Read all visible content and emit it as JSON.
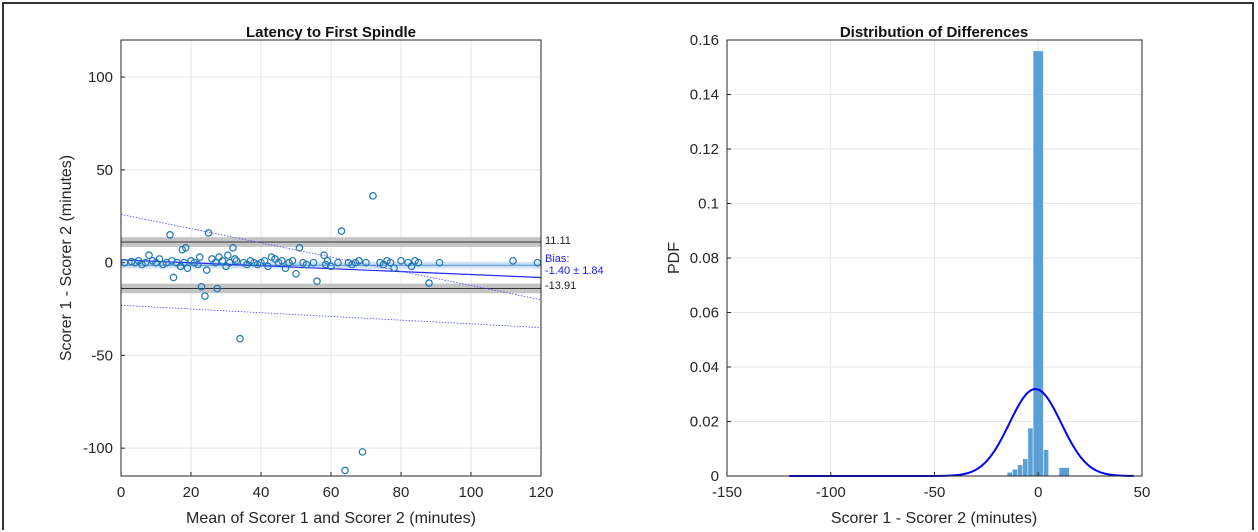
{
  "chart_data": [
    {
      "type": "scatter",
      "title": "Latency to First Spindle",
      "xlabel": "Mean of Scorer 1 and Scorer 2 (minutes)",
      "ylabel": "Scorer 1 - Scorer 2 (minutes)",
      "xlim": [
        0,
        120
      ],
      "ylim": [
        -115,
        120
      ],
      "xticks": [
        "0",
        "20",
        "40",
        "60",
        "80",
        "100",
        "120"
      ],
      "yticks": [
        "100",
        "50",
        "0",
        "-50",
        "-100"
      ],
      "grid": true,
      "point_color": "#1f77b4",
      "limits": {
        "upper_loa": {
          "value": 11.11,
          "label": "11.11"
        },
        "lower_loa": {
          "value": -13.91,
          "label": "-13.91"
        },
        "bias": {
          "value": -1.4,
          "ci": 1.84,
          "label1": "Bias:",
          "label2": "-1.40 ± 1.84"
        }
      },
      "regression": {
        "x": [
          0,
          120
        ],
        "y": [
          1.5,
          -8
        ]
      },
      "regression_upper": {
        "x": [
          0,
          120
        ],
        "y": [
          26,
          -20
        ]
      },
      "regression_lower": {
        "x": [
          0,
          120
        ],
        "y": [
          -23,
          -35
        ]
      },
      "points": [
        [
          1,
          0
        ],
        [
          3,
          0.5
        ],
        [
          4,
          0
        ],
        [
          5,
          1
        ],
        [
          6,
          -1
        ],
        [
          7,
          0
        ],
        [
          8,
          4
        ],
        [
          9,
          1
        ],
        [
          10,
          0
        ],
        [
          11,
          2
        ],
        [
          12,
          -1
        ],
        [
          13,
          0
        ],
        [
          14,
          15
        ],
        [
          14.5,
          1
        ],
        [
          15,
          -8
        ],
        [
          16,
          0
        ],
        [
          17,
          -2
        ],
        [
          17.5,
          7
        ],
        [
          18,
          0
        ],
        [
          18.5,
          8
        ],
        [
          19,
          -3
        ],
        [
          20,
          1
        ],
        [
          21,
          0
        ],
        [
          22,
          -1
        ],
        [
          22.5,
          3
        ],
        [
          23,
          -13
        ],
        [
          24,
          -18
        ],
        [
          24.5,
          -4
        ],
        [
          25,
          16
        ],
        [
          26,
          2
        ],
        [
          27,
          0
        ],
        [
          27.5,
          -14
        ],
        [
          28,
          3
        ],
        [
          29,
          1
        ],
        [
          30,
          -2
        ],
        [
          30.5,
          4
        ],
        [
          31,
          0
        ],
        [
          32,
          8
        ],
        [
          32.5,
          2
        ],
        [
          33,
          1
        ],
        [
          34,
          -41
        ],
        [
          35,
          0
        ],
        [
          36,
          -1
        ],
        [
          37,
          1
        ],
        [
          38,
          0
        ],
        [
          39,
          -1
        ],
        [
          40,
          0
        ],
        [
          41,
          1
        ],
        [
          42,
          -2
        ],
        [
          43,
          3
        ],
        [
          44,
          2
        ],
        [
          45,
          0
        ],
        [
          46,
          1
        ],
        [
          47,
          -3
        ],
        [
          48,
          0
        ],
        [
          49,
          1
        ],
        [
          50,
          -6
        ],
        [
          51,
          8
        ],
        [
          52,
          0
        ],
        [
          53,
          -1
        ],
        [
          55,
          0
        ],
        [
          56,
          -10
        ],
        [
          58,
          4
        ],
        [
          58.5,
          -1
        ],
        [
          59,
          1
        ],
        [
          60,
          -2
        ],
        [
          62,
          0
        ],
        [
          63,
          17
        ],
        [
          64,
          -112
        ],
        [
          65,
          0
        ],
        [
          66,
          -1
        ],
        [
          67,
          0
        ],
        [
          68,
          1
        ],
        [
          69,
          -102
        ],
        [
          70,
          0
        ],
        [
          72,
          36
        ],
        [
          74,
          0
        ],
        [
          75,
          -1
        ],
        [
          76,
          1
        ],
        [
          77,
          0
        ],
        [
          78,
          -3
        ],
        [
          80,
          1
        ],
        [
          82,
          0
        ],
        [
          83,
          -2
        ],
        [
          84,
          1
        ],
        [
          85,
          0
        ],
        [
          88,
          -11
        ],
        [
          91,
          0
        ],
        [
          112,
          1
        ],
        [
          119,
          0
        ]
      ]
    },
    {
      "type": "bar",
      "title": "Distribution of Differences",
      "xlabel": "Scorer 1 - Scorer 2 (minutes)",
      "ylabel": "PDF",
      "xlim": [
        -150,
        50
      ],
      "ylim": [
        0,
        0.16
      ],
      "xticks": [
        "-150",
        "-100",
        "-50",
        "0",
        "50"
      ],
      "yticks": [
        "0",
        "0.02",
        "0.04",
        "0.06",
        "0.08",
        "0.1",
        "0.12",
        "0.14",
        "0.16"
      ],
      "grid": true,
      "bar_color": "#5b9fd6",
      "curve_color": "#0000ff",
      "bins": [
        {
          "x0": -110,
          "x1": -100,
          "value": 0.0004
        },
        {
          "x0": -15,
          "x1": -12.5,
          "value": 0.0014
        },
        {
          "x0": -12.5,
          "x1": -10,
          "value": 0.0025
        },
        {
          "x0": -10,
          "x1": -7.5,
          "value": 0.0041
        },
        {
          "x0": -7.5,
          "x1": -5,
          "value": 0.0063
        },
        {
          "x0": -5,
          "x1": -2.5,
          "value": 0.0176
        },
        {
          "x0": -2.5,
          "x1": 2.5,
          "value": 0.156
        },
        {
          "x0": 2.5,
          "x1": 5,
          "value": 0.0097
        },
        {
          "x0": 10,
          "x1": 15,
          "value": 0.0031
        }
      ],
      "normal_fit": {
        "mean": -1.4,
        "sd": 12.5,
        "x_range": [
          -120,
          46
        ]
      }
    }
  ]
}
